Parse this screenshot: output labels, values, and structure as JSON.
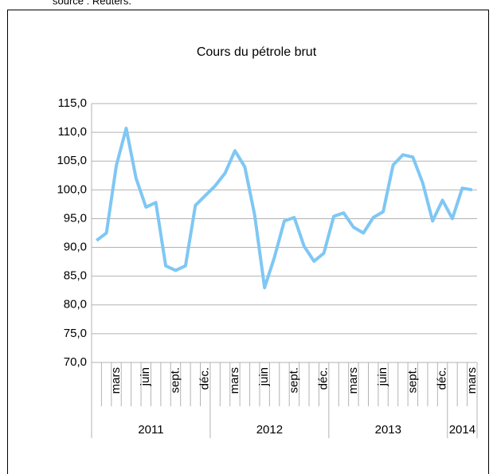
{
  "source": "source : Reuters.",
  "chart_data": {
    "type": "line",
    "title": "Cours du pétrole brut",
    "categories": [
      null,
      null,
      "mars",
      null,
      null,
      "juin",
      null,
      null,
      "sept.",
      null,
      null,
      "déc.",
      null,
      null,
      "mars",
      null,
      null,
      "juin",
      null,
      null,
      "sept.",
      null,
      null,
      "déc.",
      null,
      null,
      "mars",
      null,
      null,
      "juin",
      null,
      null,
      "sept.",
      null,
      null,
      "déc.",
      null,
      null,
      "mars"
    ],
    "years": [
      "2011",
      "2012",
      "2013",
      "2014"
    ],
    "series": [
      {
        "name": "Cours du pétrole brut",
        "color": "#7fc7f4",
        "values": [
          91.2,
          92.5,
          104.2,
          110.7,
          102,
          97,
          97.8,
          86.8,
          86,
          86.8,
          97.3,
          99,
          100.7,
          102.9,
          106.8,
          104,
          95.6,
          83,
          88.3,
          94.6,
          95.2,
          90.2,
          87.6,
          89,
          95.4,
          96,
          93.5,
          92.5,
          95.2,
          96.2,
          104.3,
          106.1,
          105.7,
          101.2,
          94.6,
          98.2,
          95,
          100.3,
          100
        ]
      }
    ],
    "ylim": [
      70,
      115
    ],
    "yticks": [
      {
        "value": 70,
        "label": "70,0"
      },
      {
        "value": 75,
        "label": "75,0"
      },
      {
        "value": 80,
        "label": "80,0"
      },
      {
        "value": 85,
        "label": "85,0"
      },
      {
        "value": 90,
        "label": "90,0"
      },
      {
        "value": 95,
        "label": "95,0"
      },
      {
        "value": 100,
        "label": "100,0"
      },
      {
        "value": 105,
        "label": "105,0"
      },
      {
        "value": 110,
        "label": "110,0"
      },
      {
        "value": 115,
        "label": "115,0"
      }
    ],
    "grid": true,
    "legend": false
  }
}
